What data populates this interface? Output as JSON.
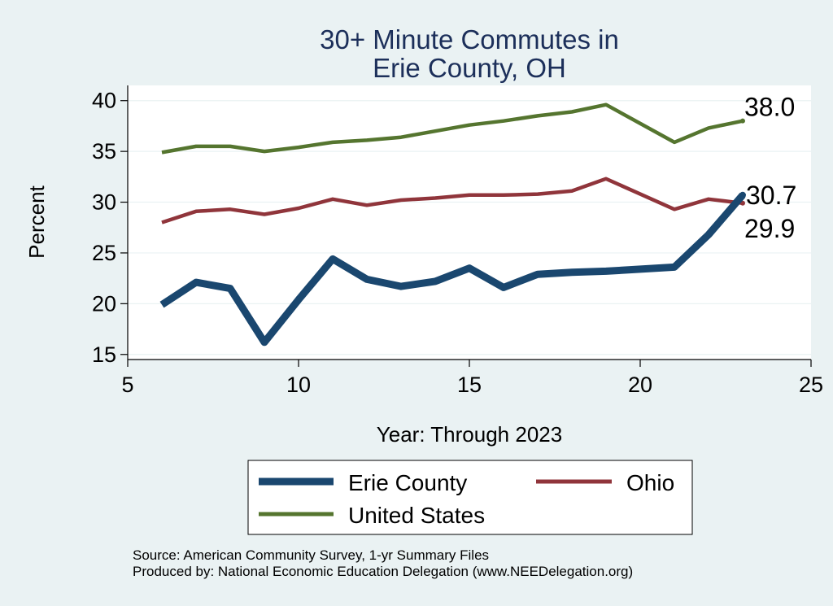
{
  "chart_data": {
    "type": "line",
    "title": [
      "30+ Minute Commutes in",
      "Erie County, OH"
    ],
    "xlabel": "Year: Through 2023",
    "ylabel": "Percent",
    "xlim": [
      5,
      25
    ],
    "ylim": [
      14.5,
      41.5
    ],
    "xticks": [
      5,
      10,
      15,
      20,
      25
    ],
    "yticks": [
      15,
      20,
      25,
      30,
      35,
      40
    ],
    "grid": true,
    "series": [
      {
        "name": "Erie County",
        "color": "#1a476f",
        "x": [
          6,
          7,
          8,
          9,
          10,
          11,
          12,
          13,
          14,
          15,
          16,
          17,
          18,
          19,
          21,
          22,
          23
        ],
        "values": [
          19.9,
          22.1,
          21.5,
          16.2,
          20.4,
          24.4,
          22.4,
          21.7,
          22.2,
          23.5,
          21.6,
          22.9,
          23.1,
          23.2,
          23.6,
          26.8,
          30.7
        ],
        "end_label": "30.7"
      },
      {
        "name": "Ohio",
        "color": "#90353b",
        "x": [
          6,
          7,
          8,
          9,
          10,
          11,
          12,
          13,
          14,
          15,
          16,
          17,
          18,
          19,
          21,
          22,
          23
        ],
        "values": [
          28.0,
          29.1,
          29.3,
          28.8,
          29.4,
          30.3,
          29.7,
          30.2,
          30.4,
          30.7,
          30.7,
          30.8,
          31.1,
          32.3,
          29.3,
          30.3,
          29.9
        ],
        "end_label": "29.9"
      },
      {
        "name": "United States",
        "color": "#55752f",
        "x": [
          6,
          7,
          8,
          9,
          10,
          11,
          12,
          13,
          14,
          15,
          16,
          17,
          18,
          19,
          21,
          22,
          23
        ],
        "values": [
          34.9,
          35.5,
          35.5,
          35.0,
          35.4,
          35.9,
          36.1,
          36.4,
          37.0,
          37.6,
          38.0,
          38.5,
          38.9,
          39.6,
          35.9,
          37.3,
          38.0
        ],
        "end_label": "38.0"
      }
    ],
    "legend": [
      "Erie County",
      "Ohio",
      "United States"
    ],
    "legend_position": "bottom"
  },
  "notes": {
    "source": "Source: American Community Survey, 1-yr Summary Files",
    "produced": "Produced by: National Economic Education Delegation (www.NEEDelegation.org)"
  }
}
